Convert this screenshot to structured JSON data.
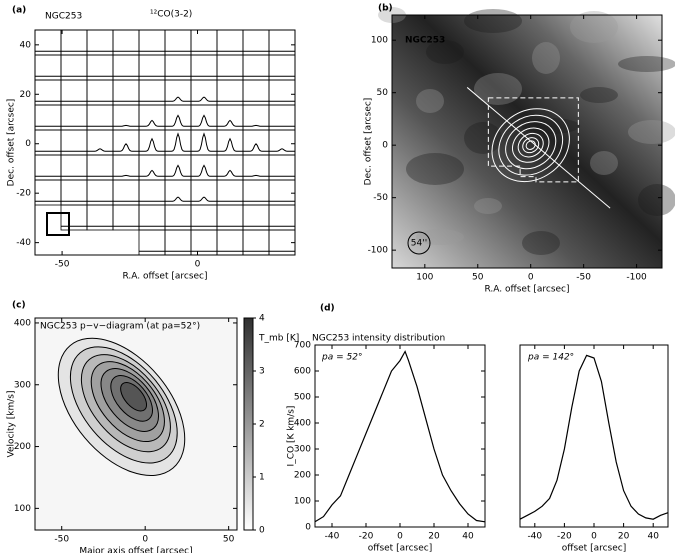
{
  "chart_data": [
    {
      "type": "spectra-grid",
      "label": "(a)",
      "title": "NGC253",
      "subtitle": "¹²CO(3-2)",
      "xlabel": "R.A. offset [arcsec]",
      "ylabel": "Dec. offset [arcsec]",
      "xlim": [
        -60,
        36
      ],
      "ylim": [
        -45,
        46
      ],
      "xticks": [
        -50,
        0
      ],
      "yticks": [
        -40,
        -20,
        0,
        20,
        40
      ]
    },
    {
      "type": "image",
      "label": "(b)",
      "title": "NGC253",
      "beam": "54''",
      "xlabel": "R.A. offset [arcsec]",
      "ylabel": "Dec. offset [arcsec]",
      "xlim": [
        131,
        -124
      ],
      "ylim": [
        -117,
        124
      ],
      "xticks": [
        100,
        50,
        0,
        -50,
        -100
      ],
      "yticks": [
        -100,
        -50,
        0,
        50,
        100
      ]
    },
    {
      "type": "pv-diagram",
      "label": "(c)",
      "title": "NGC253   p−v−diagram (at pa=52°)",
      "xlabel": "Major axis offset [arcsec]",
      "ylabel": "Velocity [km/s]",
      "zlabel": "T_mb [K]",
      "xlim": [
        -66,
        55
      ],
      "ylim": [
        65,
        408
      ],
      "xticks": [
        -50,
        0,
        50
      ],
      "yticks": [
        100,
        200,
        300,
        400
      ],
      "zlim": [
        0,
        4
      ],
      "zticks": [
        0,
        1,
        2,
        3,
        4
      ]
    },
    {
      "type": "line",
      "label": "(d)",
      "title": "NGC253 intensity distribution",
      "annotation": "pa = 52°",
      "xlabel": "offset [arcsec]",
      "ylabel": "I_CO [K km/s]",
      "color": "#000000",
      "xlim": [
        -50,
        50
      ],
      "ylim": [
        0,
        700
      ],
      "xticks": [
        -40,
        -20,
        0,
        20,
        40
      ],
      "yticks": [
        0,
        100,
        200,
        300,
        400,
        500,
        600,
        700
      ],
      "x": [
        -50,
        -45,
        -40,
        -35,
        -30,
        -25,
        -20,
        -15,
        -10,
        -5,
        0,
        3,
        5,
        10,
        15,
        20,
        25,
        30,
        35,
        40,
        45,
        50
      ],
      "values": [
        20,
        40,
        85,
        120,
        200,
        280,
        360,
        440,
        520,
        600,
        640,
        675,
        640,
        540,
        420,
        300,
        200,
        140,
        90,
        50,
        25,
        20
      ]
    },
    {
      "type": "line",
      "annotation": "pa = 142°",
      "xlabel": "offset [arcsec]",
      "color": "#000000",
      "xlim": [
        -50,
        50
      ],
      "ylim": [
        0,
        700
      ],
      "xticks": [
        -40,
        -20,
        0,
        20,
        40
      ],
      "x": [
        -50,
        -45,
        -40,
        -35,
        -30,
        -25,
        -20,
        -15,
        -10,
        -5,
        0,
        5,
        10,
        15,
        20,
        25,
        30,
        35,
        40,
        45,
        50
      ],
      "values": [
        30,
        45,
        60,
        80,
        110,
        180,
        300,
        460,
        600,
        660,
        650,
        560,
        400,
        250,
        140,
        80,
        50,
        35,
        30,
        45,
        55
      ]
    }
  ]
}
